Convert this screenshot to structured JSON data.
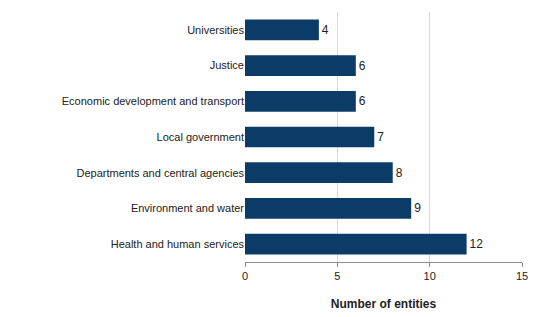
{
  "chart_data": {
    "type": "bar",
    "orientation": "horizontal",
    "categories": [
      "Universities",
      "Justice",
      "Economic development and transport",
      "Local government",
      "Departments and central agencies",
      "Environment and water",
      "Health and human services"
    ],
    "values": [
      4,
      6,
      6,
      7,
      8,
      9,
      12
    ],
    "color": "#0b3c68",
    "x_label": "Number of entities",
    "xlim": [
      0,
      15
    ],
    "xticks": [
      0,
      5,
      10,
      15
    ],
    "grid": true,
    "data_labels": true
  }
}
